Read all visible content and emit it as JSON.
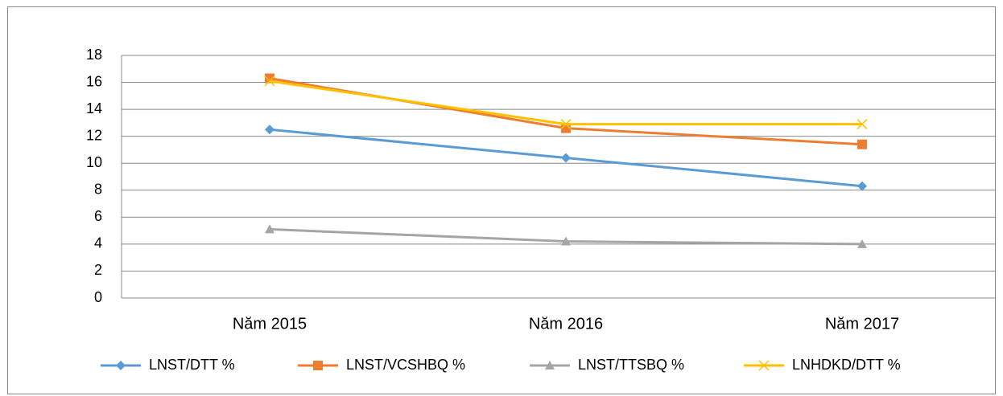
{
  "chart_data": {
    "type": "line",
    "categories": [
      "Năm 2015",
      "Năm 2016",
      "Năm 2017"
    ],
    "series": [
      {
        "name": "LNST/DTT %",
        "color": "#5b9bd5",
        "values": [
          12.5,
          10.4,
          8.3
        ]
      },
      {
        "name": "LNST/VCSHBQ %",
        "color": "#ed7d31",
        "values": [
          16.3,
          12.6,
          11.4
        ]
      },
      {
        "name": "LNST/TTSBQ %",
        "color": "#a5a5a5",
        "values": [
          5.1,
          4.2,
          4.0
        ]
      },
      {
        "name": "LNHDKD/DTT %",
        "color": "#ffc000",
        "values": [
          16.1,
          12.9,
          12.9
        ]
      }
    ],
    "ylim": [
      0,
      18
    ],
    "yticks": [
      0,
      2,
      4,
      6,
      8,
      10,
      12,
      14,
      16,
      18
    ],
    "grid": true,
    "legend": "bottom"
  }
}
